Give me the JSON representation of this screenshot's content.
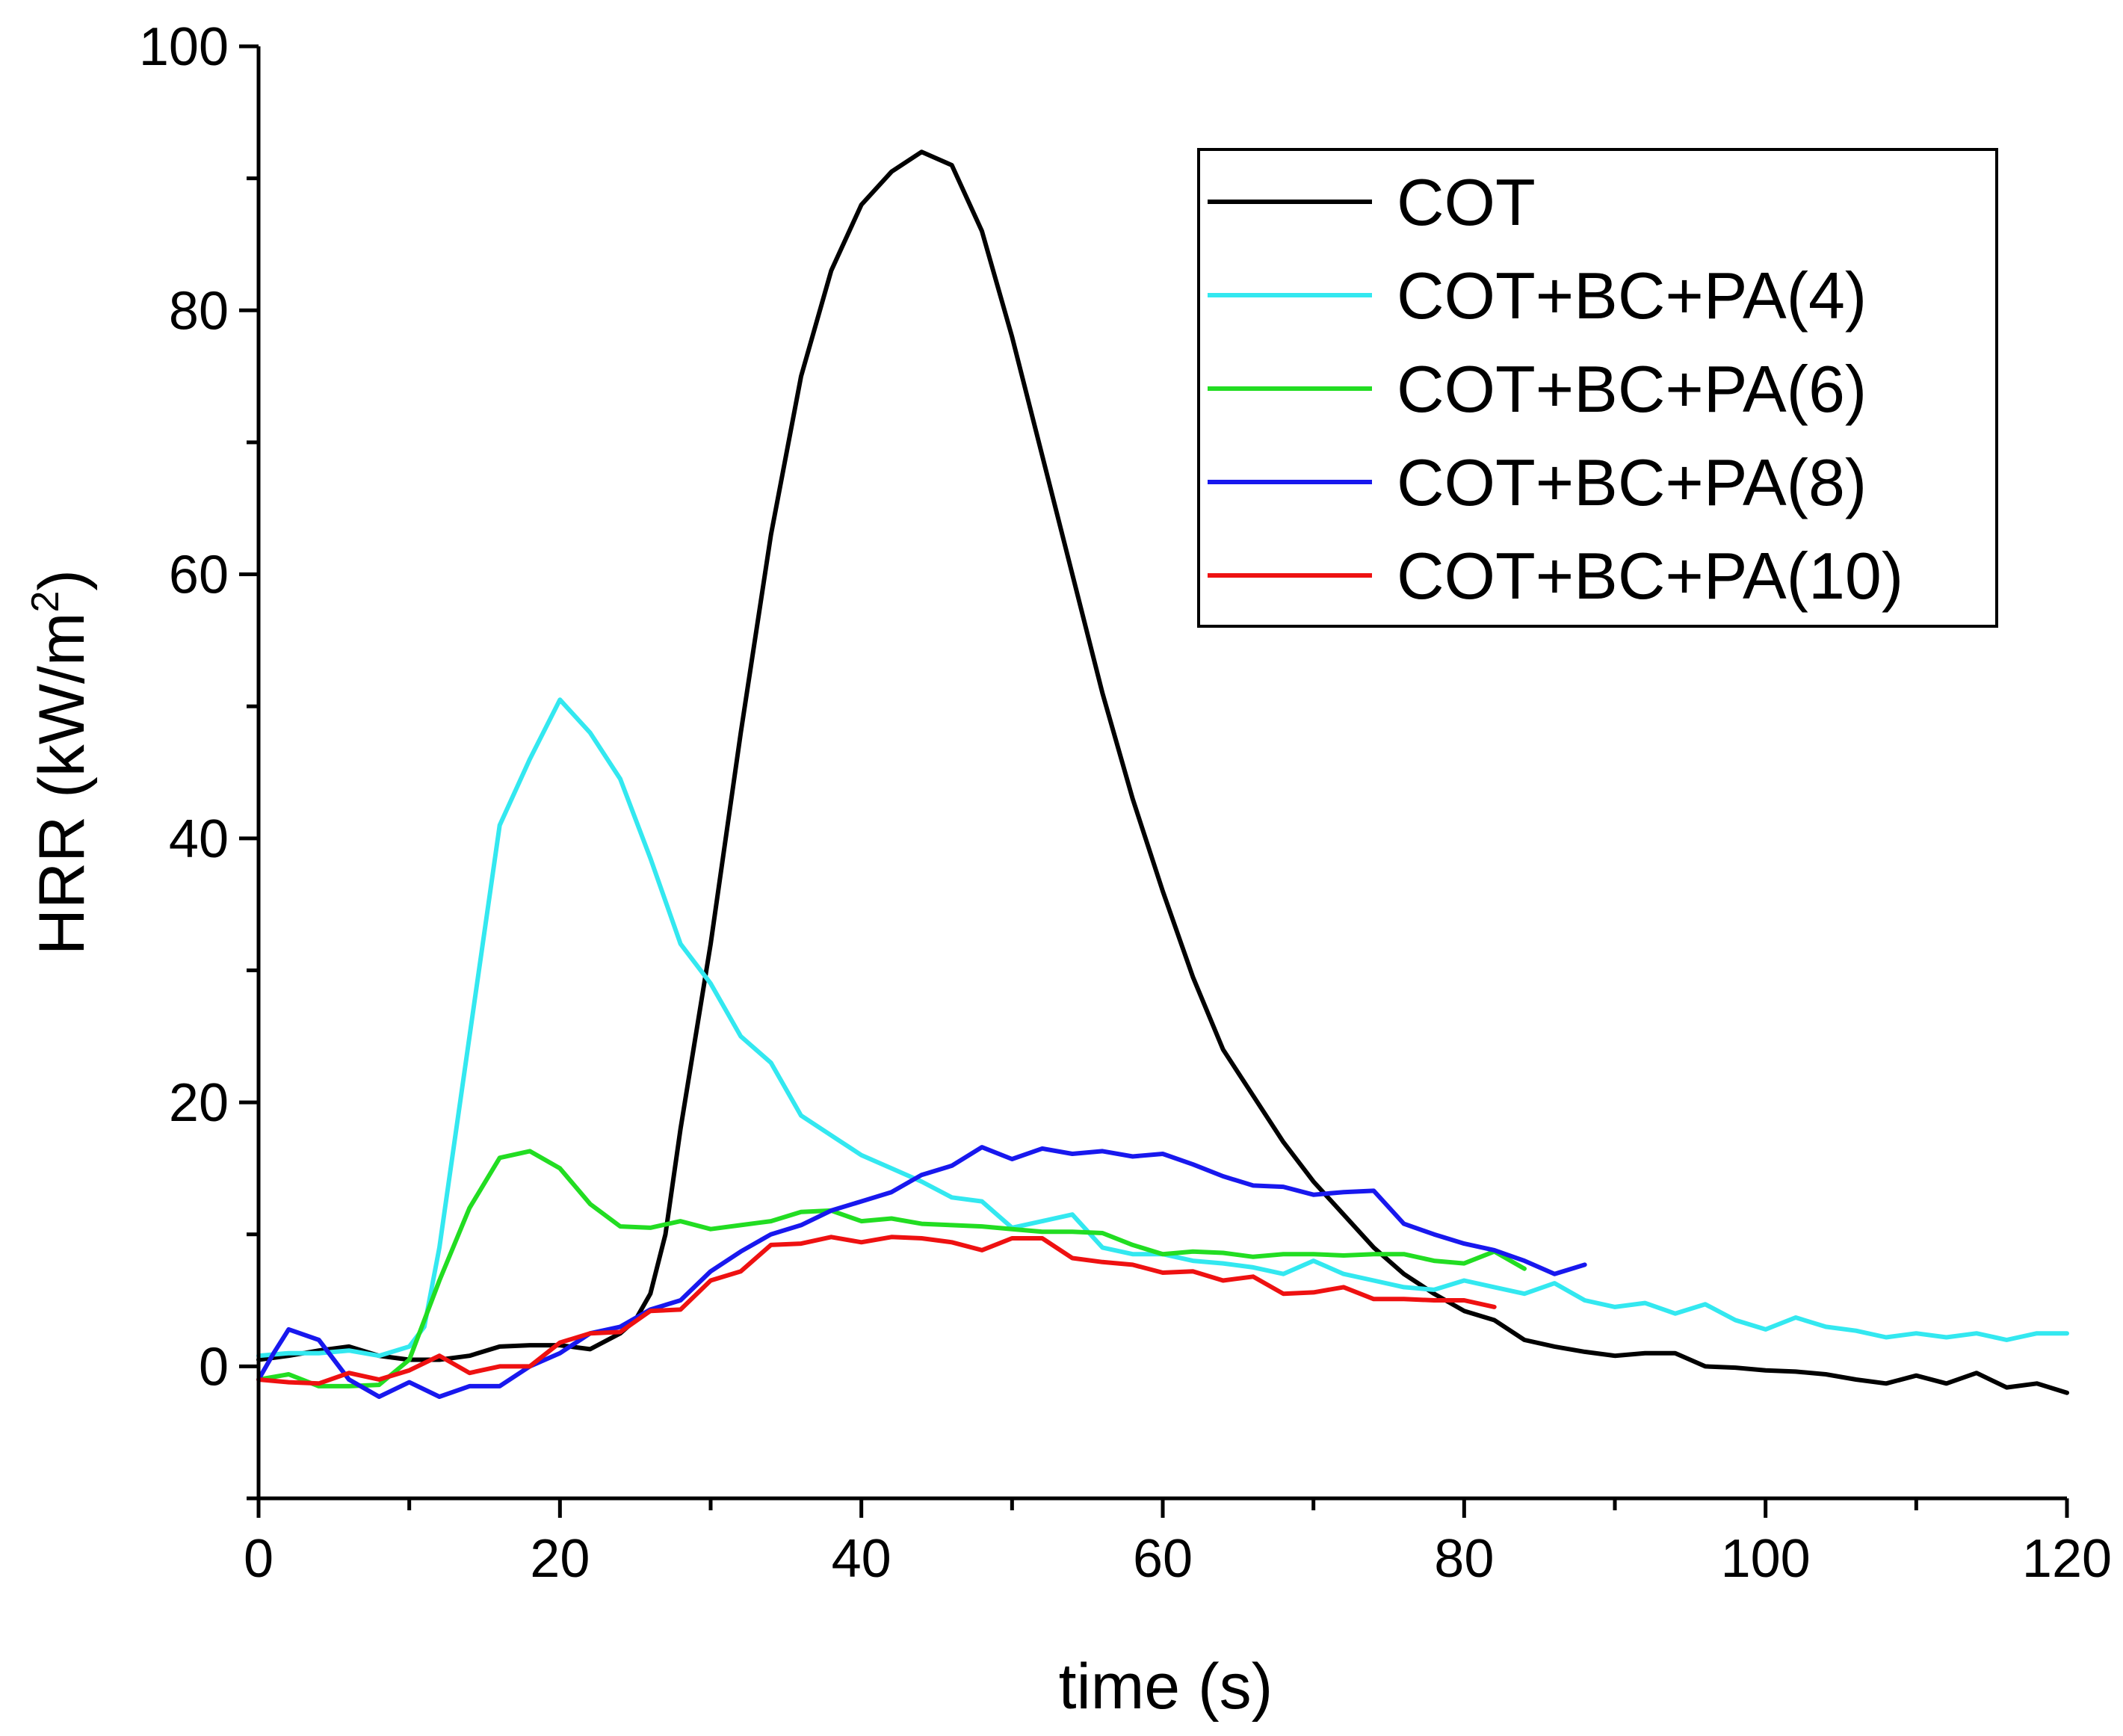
{
  "chart_data": {
    "type": "line",
    "title": "",
    "xlabel": "time (s)",
    "ylabel_main": "HRR (kW/m",
    "ylabel_sup": "2",
    "ylabel_close": ")",
    "xlim": [
      0,
      120
    ],
    "ylim": [
      -10,
      100
    ],
    "xticks": [
      "0",
      "20",
      "40",
      "60",
      "80",
      "100",
      "120"
    ],
    "yticks": [
      "0",
      "20",
      "40",
      "60",
      "80",
      "100"
    ],
    "grid": false,
    "legend_position": "top-right",
    "series": [
      {
        "name": "COT",
        "color": "#000000",
        "points": [
          [
            0,
            0.5
          ],
          [
            2,
            0.8
          ],
          [
            4,
            1.2
          ],
          [
            6,
            1.5
          ],
          [
            8,
            0.8
          ],
          [
            10,
            0.5
          ],
          [
            12,
            0.5
          ],
          [
            14,
            0.8
          ],
          [
            16,
            1.5
          ],
          [
            18,
            1.6
          ],
          [
            20,
            1.6
          ],
          [
            22,
            1.3
          ],
          [
            24,
            2.5
          ],
          [
            25,
            3.5
          ],
          [
            26,
            5.5
          ],
          [
            27,
            10
          ],
          [
            28,
            18
          ],
          [
            30,
            32
          ],
          [
            32,
            48
          ],
          [
            34,
            63
          ],
          [
            36,
            75
          ],
          [
            38,
            83
          ],
          [
            40,
            88
          ],
          [
            42,
            90.5
          ],
          [
            44,
            92
          ],
          [
            46,
            91
          ],
          [
            48,
            86
          ],
          [
            50,
            78
          ],
          [
            52,
            69
          ],
          [
            54,
            60
          ],
          [
            56,
            51
          ],
          [
            58,
            43
          ],
          [
            60,
            36
          ],
          [
            62,
            29.5
          ],
          [
            64,
            24
          ],
          [
            66,
            20.5
          ],
          [
            68,
            17
          ],
          [
            70,
            14
          ],
          [
            72,
            11.5
          ],
          [
            74,
            9
          ],
          [
            76,
            7
          ],
          [
            78,
            5.5
          ],
          [
            80,
            4.2
          ],
          [
            82,
            3.5
          ],
          [
            84,
            2
          ],
          [
            86,
            1.5
          ],
          [
            88,
            1.1
          ],
          [
            90,
            0.8
          ],
          [
            92,
            1
          ],
          [
            94,
            1
          ],
          [
            96,
            0
          ],
          [
            98,
            -0.1
          ],
          [
            100,
            -0.3
          ],
          [
            102,
            -0.4
          ],
          [
            104,
            -0.6
          ],
          [
            106,
            -1
          ],
          [
            108,
            -1.3
          ],
          [
            110,
            -0.7
          ],
          [
            112,
            -1.3
          ],
          [
            114,
            -0.5
          ],
          [
            116,
            -1.6
          ],
          [
            118,
            -1.3
          ],
          [
            120,
            -2
          ]
        ]
      },
      {
        "name": "COT+BC+PA(4)",
        "color": "#33e8f0",
        "points": [
          [
            0,
            0.8
          ],
          [
            2,
            1
          ],
          [
            4,
            1
          ],
          [
            6,
            1.2
          ],
          [
            8,
            0.8
          ],
          [
            10,
            1.5
          ],
          [
            11,
            3
          ],
          [
            12,
            9
          ],
          [
            14,
            25
          ],
          [
            16,
            41
          ],
          [
            18,
            46
          ],
          [
            20,
            50.5
          ],
          [
            22,
            48
          ],
          [
            24,
            44.5
          ],
          [
            26,
            38.5
          ],
          [
            28,
            32
          ],
          [
            30,
            29
          ],
          [
            32,
            25
          ],
          [
            34,
            23
          ],
          [
            36,
            19
          ],
          [
            38,
            17.5
          ],
          [
            40,
            16
          ],
          [
            42,
            15
          ],
          [
            44,
            14
          ],
          [
            46,
            12.8
          ],
          [
            48,
            12.5
          ],
          [
            50,
            10.5
          ],
          [
            52,
            11
          ],
          [
            54,
            11.5
          ],
          [
            56,
            9
          ],
          [
            58,
            8.5
          ],
          [
            60,
            8.5
          ],
          [
            62,
            8
          ],
          [
            64,
            7.8
          ],
          [
            66,
            7.5
          ],
          [
            68,
            7
          ],
          [
            70,
            8
          ],
          [
            72,
            7
          ],
          [
            74,
            6.5
          ],
          [
            76,
            6
          ],
          [
            78,
            5.8
          ],
          [
            80,
            6.5
          ],
          [
            82,
            6
          ],
          [
            84,
            5.5
          ],
          [
            86,
            6.3
          ],
          [
            88,
            5
          ],
          [
            90,
            4.5
          ],
          [
            92,
            4.8
          ],
          [
            94,
            4
          ],
          [
            96,
            4.7
          ],
          [
            98,
            3.5
          ],
          [
            100,
            2.8
          ],
          [
            102,
            3.7
          ],
          [
            104,
            3
          ],
          [
            106,
            2.7
          ],
          [
            108,
            2.2
          ],
          [
            110,
            2.5
          ],
          [
            112,
            2.2
          ],
          [
            114,
            2.5
          ],
          [
            116,
            2
          ],
          [
            118,
            2.5
          ],
          [
            120,
            2.5
          ]
        ]
      },
      {
        "name": "COT+BC+PA(6)",
        "color": "#22dd22",
        "points": [
          [
            0,
            -1
          ],
          [
            2,
            -0.6
          ],
          [
            4,
            -1.5
          ],
          [
            6,
            -1.5
          ],
          [
            8,
            -1.4
          ],
          [
            10,
            0.5
          ],
          [
            12,
            6.5
          ],
          [
            14,
            12
          ],
          [
            16,
            15.8
          ],
          [
            18,
            16.3
          ],
          [
            20,
            15
          ],
          [
            22,
            12.3
          ],
          [
            24,
            10.6
          ],
          [
            26,
            10.5
          ],
          [
            28,
            11
          ],
          [
            30,
            10.4
          ],
          [
            32,
            10.7
          ],
          [
            34,
            11
          ],
          [
            36,
            11.7
          ],
          [
            38,
            11.8
          ],
          [
            40,
            11
          ],
          [
            42,
            11.2
          ],
          [
            44,
            10.8
          ],
          [
            46,
            10.7
          ],
          [
            48,
            10.6
          ],
          [
            50,
            10.4
          ],
          [
            52,
            10.2
          ],
          [
            54,
            10.2
          ],
          [
            56,
            10.1
          ],
          [
            58,
            9.2
          ],
          [
            60,
            8.5
          ],
          [
            62,
            8.7
          ],
          [
            64,
            8.6
          ],
          [
            66,
            8.3
          ],
          [
            68,
            8.5
          ],
          [
            70,
            8.5
          ],
          [
            72,
            8.4
          ],
          [
            74,
            8.5
          ],
          [
            76,
            8.5
          ],
          [
            78,
            8
          ],
          [
            80,
            7.8
          ],
          [
            82,
            8.7
          ],
          [
            84,
            7.4
          ]
        ]
      },
      {
        "name": "COT+BC+PA(8)",
        "color": "#1818ee",
        "points": [
          [
            0,
            -1
          ],
          [
            1,
            1
          ],
          [
            2,
            2.8
          ],
          [
            4,
            2
          ],
          [
            6,
            -1
          ],
          [
            8,
            -2.3
          ],
          [
            10,
            -1.2
          ],
          [
            12,
            -2.3
          ],
          [
            14,
            -1.5
          ],
          [
            16,
            -1.5
          ],
          [
            18,
            0
          ],
          [
            20,
            1
          ],
          [
            22,
            2.5
          ],
          [
            24,
            3
          ],
          [
            26,
            4.3
          ],
          [
            28,
            5
          ],
          [
            30,
            7.2
          ],
          [
            32,
            8.7
          ],
          [
            34,
            10
          ],
          [
            36,
            10.7
          ],
          [
            38,
            11.8
          ],
          [
            40,
            12.5
          ],
          [
            42,
            13.2
          ],
          [
            44,
            14.5
          ],
          [
            46,
            15.2
          ],
          [
            48,
            16.6
          ],
          [
            50,
            15.7
          ],
          [
            52,
            16.5
          ],
          [
            54,
            16.1
          ],
          [
            56,
            16.3
          ],
          [
            58,
            15.9
          ],
          [
            60,
            16.1
          ],
          [
            62,
            15.3
          ],
          [
            64,
            14.4
          ],
          [
            66,
            13.7
          ],
          [
            68,
            13.6
          ],
          [
            70,
            13
          ],
          [
            72,
            13.2
          ],
          [
            74,
            13.3
          ],
          [
            76,
            10.8
          ],
          [
            78,
            10
          ],
          [
            80,
            9.3
          ],
          [
            82,
            8.8
          ],
          [
            84,
            8
          ],
          [
            86,
            7
          ],
          [
            88,
            7.7
          ]
        ]
      },
      {
        "name": "COT+BC+PA(10)",
        "color": "#ee1111",
        "points": [
          [
            0,
            -1
          ],
          [
            2,
            -1.2
          ],
          [
            4,
            -1.3
          ],
          [
            6,
            -0.5
          ],
          [
            8,
            -1
          ],
          [
            10,
            -0.3
          ],
          [
            12,
            0.8
          ],
          [
            14,
            -0.5
          ],
          [
            16,
            0
          ],
          [
            18,
            0
          ],
          [
            20,
            1.8
          ],
          [
            22,
            2.5
          ],
          [
            24,
            2.6
          ],
          [
            26,
            4.2
          ],
          [
            28,
            4.3
          ],
          [
            30,
            6.5
          ],
          [
            32,
            7.2
          ],
          [
            34,
            9.2
          ],
          [
            36,
            9.3
          ],
          [
            38,
            9.8
          ],
          [
            40,
            9.4
          ],
          [
            42,
            9.8
          ],
          [
            44,
            9.7
          ],
          [
            46,
            9.4
          ],
          [
            48,
            8.8
          ],
          [
            50,
            9.7
          ],
          [
            52,
            9.7
          ],
          [
            54,
            8.2
          ],
          [
            56,
            7.9
          ],
          [
            58,
            7.7
          ],
          [
            60,
            7.1
          ],
          [
            62,
            7.2
          ],
          [
            64,
            6.5
          ],
          [
            66,
            6.8
          ],
          [
            68,
            5.5
          ],
          [
            70,
            5.6
          ],
          [
            72,
            6
          ],
          [
            74,
            5.1
          ],
          [
            76,
            5.1
          ],
          [
            78,
            5
          ],
          [
            80,
            5
          ],
          [
            82,
            4.5
          ]
        ]
      }
    ]
  }
}
